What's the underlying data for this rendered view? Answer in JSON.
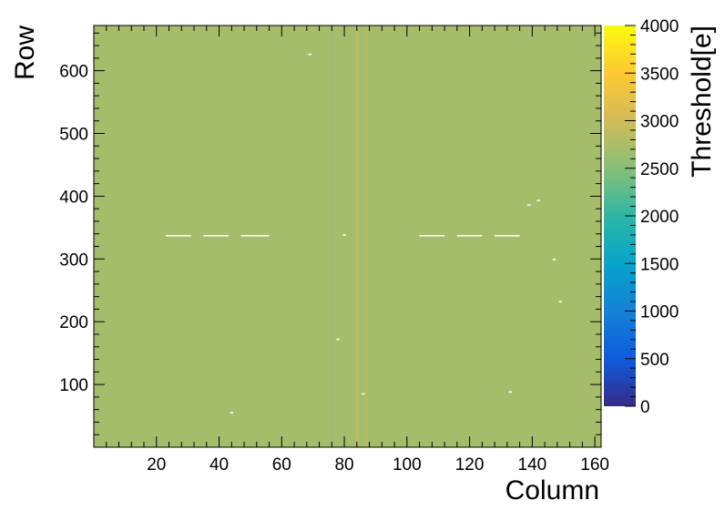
{
  "chart_data": {
    "type": "heatmap",
    "title": "",
    "xlabel": "Column",
    "ylabel": "Row",
    "zlabel": "Threshold[e]",
    "xlim": [
      0,
      162
    ],
    "ylim": [
      0,
      672
    ],
    "zlim": [
      0,
      4000
    ],
    "x_ticks": [
      20,
      40,
      60,
      80,
      100,
      120,
      140,
      160
    ],
    "y_ticks": [
      100,
      200,
      300,
      400,
      500,
      600
    ],
    "z_ticks": [
      0,
      500,
      1000,
      1500,
      2000,
      2500,
      3000,
      3500,
      4000
    ],
    "background_value": 2700,
    "colormap": [
      "#352a87",
      "#0f5cdd",
      "#1481d6",
      "#06a4ca",
      "#2eb7a4",
      "#87bf77",
      "#d1bb59",
      "#fec832",
      "#f9fb0e"
    ],
    "features": {
      "white_pixel_segments": [
        {
          "x": [
            23,
            31
          ],
          "y": 337
        },
        {
          "x": [
            35,
            43
          ],
          "y": 337
        },
        {
          "x": [
            47,
            56
          ],
          "y": 337
        },
        {
          "x": [
            104,
            112
          ],
          "y": 337
        },
        {
          "x": [
            116,
            124
          ],
          "y": 337
        },
        {
          "x": [
            128,
            136
          ],
          "y": 337
        },
        {
          "x": [
            68.5,
            69.5
          ],
          "y": 626
        },
        {
          "x": [
            79.5,
            80.5
          ],
          "y": 338
        },
        {
          "x": [
            77.5,
            78.5
          ],
          "y": 172
        },
        {
          "x": [
            85.5,
            86.5
          ],
          "y": 85
        },
        {
          "x": [
            43.5,
            44.5
          ],
          "y": 55
        },
        {
          "x": [
            141.5,
            142.5
          ],
          "y": 393
        },
        {
          "x": [
            138.5,
            139.5
          ],
          "y": 386
        },
        {
          "x": [
            146.5,
            147.5
          ],
          "y": 299
        },
        {
          "x": [
            148.5,
            149.5
          ],
          "y": 232
        },
        {
          "x": [
            132.5,
            133.5
          ],
          "y": 88
        }
      ],
      "column_stripes": [
        {
          "column": 76,
          "value": 2550
        },
        {
          "column": 84,
          "value": 2900
        },
        {
          "column": 87,
          "value": 2850
        }
      ]
    }
  }
}
